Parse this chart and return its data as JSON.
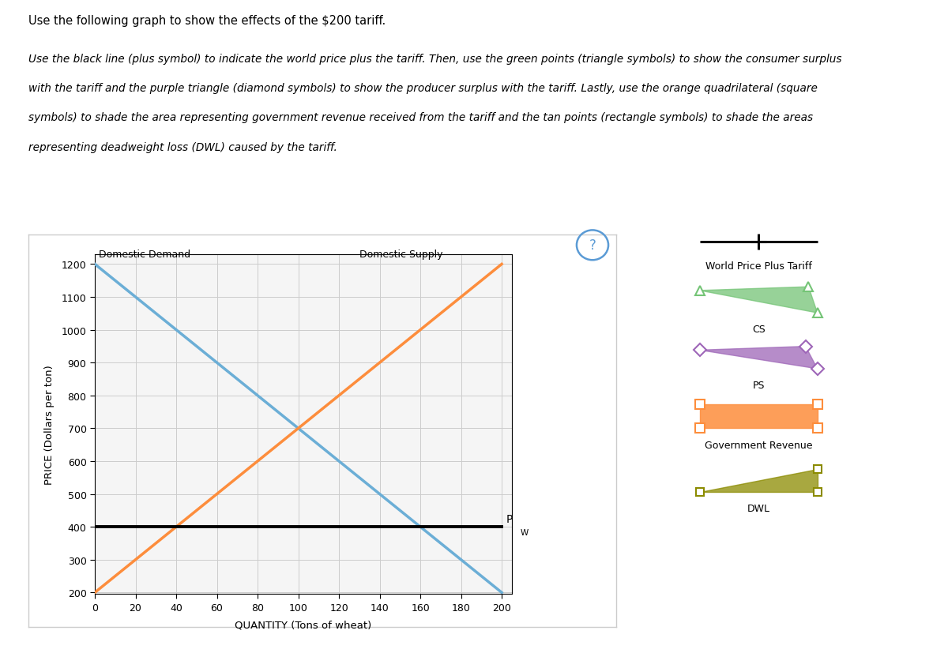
{
  "title_text": "Use the following graph to show the effects of the $200 tariff.",
  "subtitle_lines": [
    "Use the black line (plus symbol) to indicate the world price plus the tariff. Then, use the green points (triangle symbols) to show the consumer surplus",
    "with the tariff and the purple triangle (diamond symbols) to show the producer surplus with the tariff. Lastly, use the orange quadrilateral (square",
    "symbols) to shade the area representing government revenue received from the tariff and the tan points (rectangle symbols) to shade the areas",
    "representing deadweight loss (DWL) caused by the tariff."
  ],
  "demand_color": "#6baed6",
  "supply_color": "#fd8d3c",
  "tariff_line_color": "#000000",
  "cs_color": "#74c476",
  "ps_color": "#9e66b8",
  "gov_rev_color": "#fd8d3c",
  "dwl_color": "#8b8b00",
  "world_price": 200,
  "tariff": 200,
  "tariff_price": 400,
  "demand_p_intercept": 1200,
  "demand_q_intercept": 200,
  "supply_p_intercept": 200,
  "qty_min": 0,
  "qty_max": 200,
  "price_min": 200,
  "price_max": 1200,
  "ylabel": "PRICE (Dollars per ton)",
  "xlabel": "QUANTITY (Tons of wheat)",
  "demand_label": "Domestic Demand",
  "supply_label": "Domestic Supply",
  "pw_label": "P",
  "pw_sub": "W",
  "legend_items": [
    {
      "label": "World Price Plus Tariff",
      "color": "#000000",
      "style": "line_plus"
    },
    {
      "label": "CS",
      "color": "#74c476",
      "style": "triangle"
    },
    {
      "label": "PS",
      "color": "#9e66b8",
      "style": "diamond"
    },
    {
      "label": "Government Revenue",
      "color": "#fd8d3c",
      "style": "square"
    },
    {
      "label": "DWL",
      "color": "#8b8b00",
      "style": "rect"
    }
  ],
  "Qs_tariff": 40,
  "Qd_tariff": 160,
  "Qs_free": 0,
  "Qd_free": 200,
  "panel_bg": "#f5f5f5",
  "grid_color": "#cccccc",
  "outer_bg": "#ffffff"
}
